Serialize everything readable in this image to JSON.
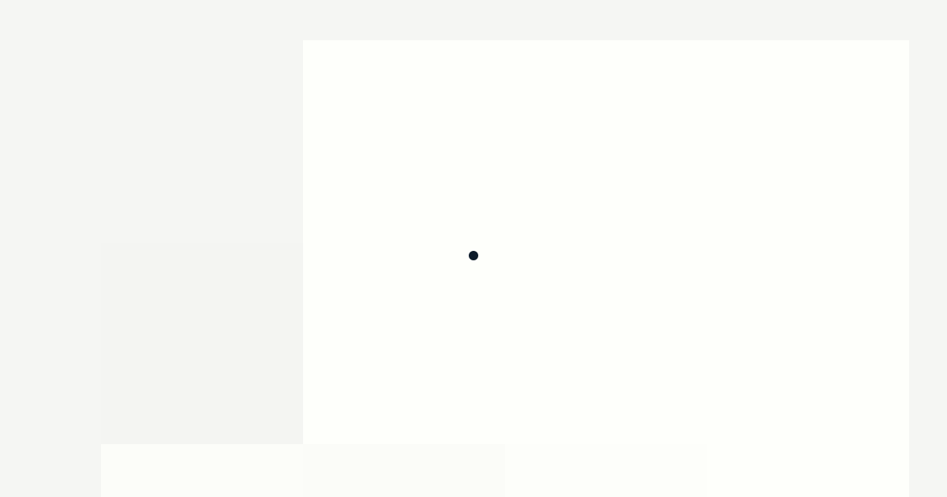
{
  "theme": {
    "background": "#f5f6f3",
    "panel": "#fefffb",
    "indicator": "#0d1b2a"
  },
  "status": {
    "indicator_icon": "loading-dot-icon"
  }
}
